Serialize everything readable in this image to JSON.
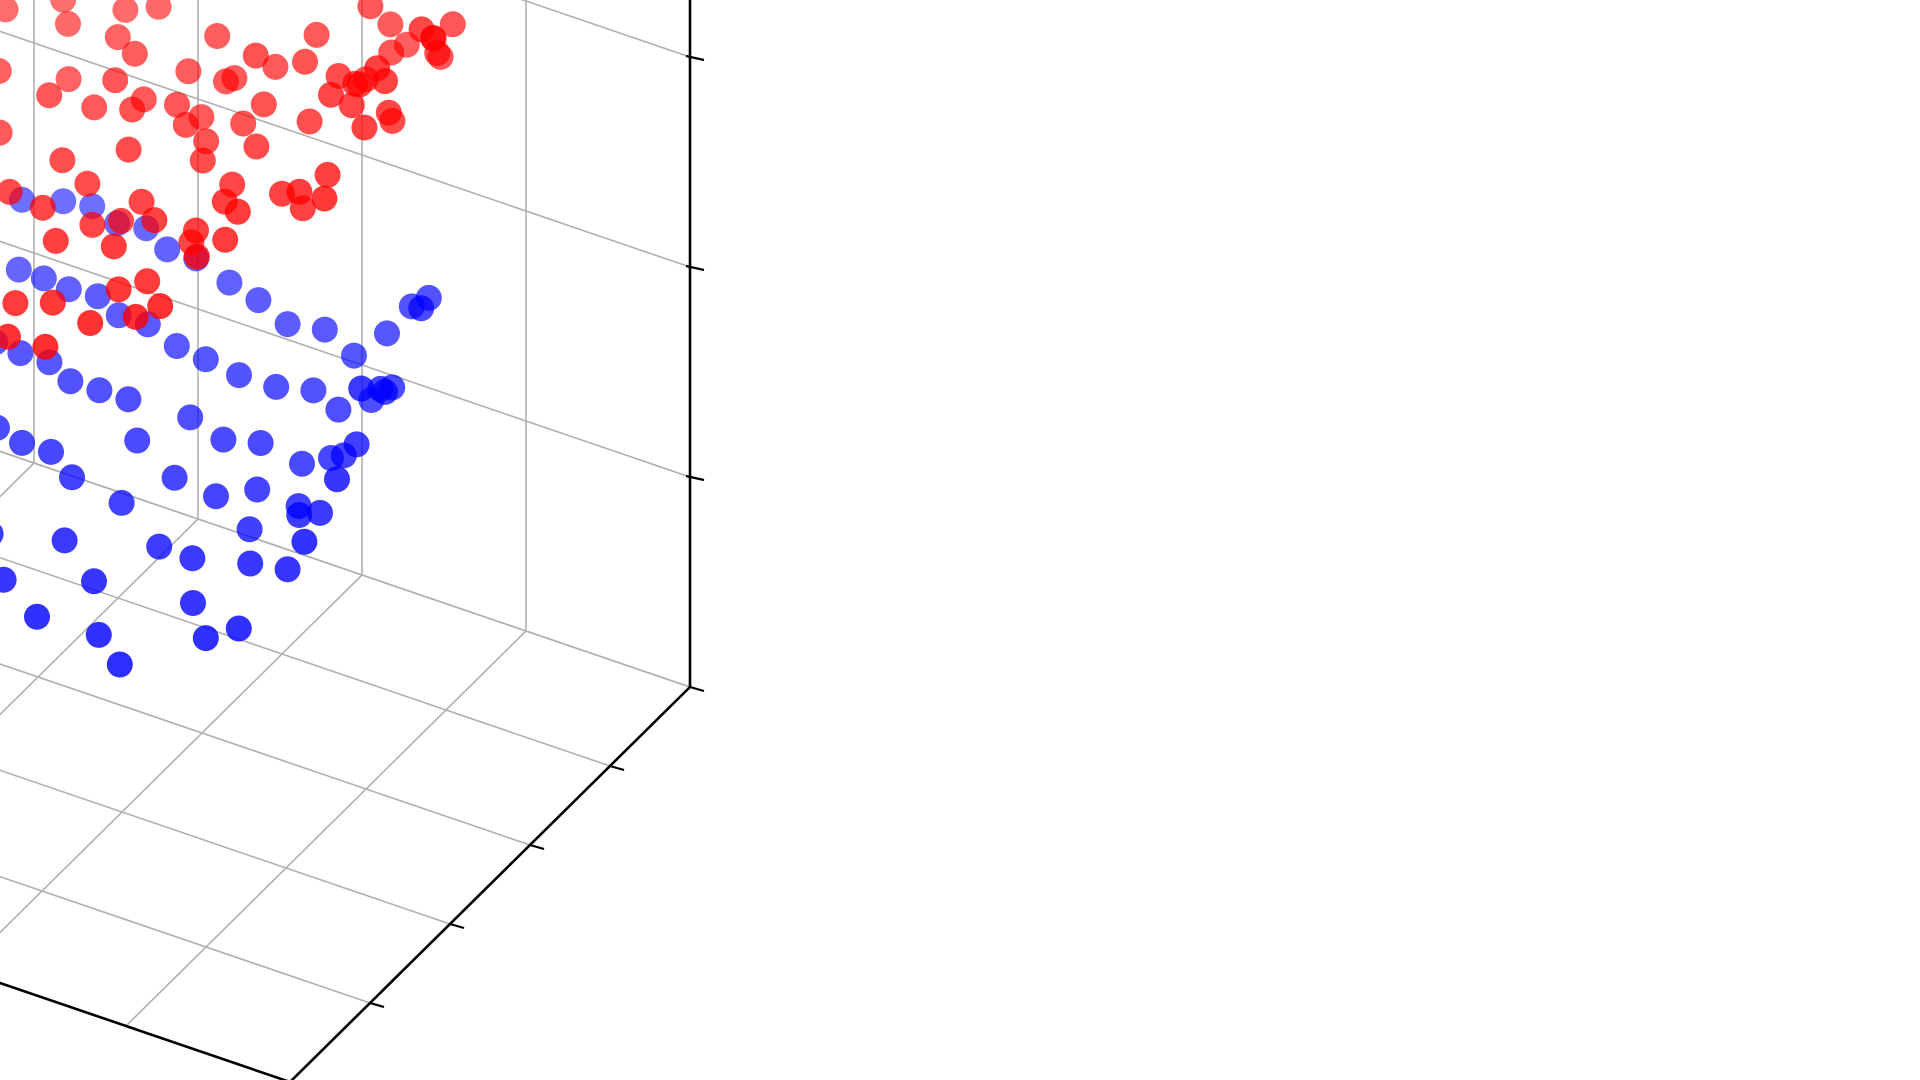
{
  "chart_data": {
    "type": "scatter",
    "projection": "3d",
    "grid": true,
    "title": "",
    "xlabel": "",
    "ylabel": "",
    "zlabel": "",
    "tick_labels_visible": false,
    "series": [
      {
        "color": "#ff0000",
        "points": [
          [
            0.02,
            0.37,
            4.29
          ],
          [
            0.02,
            0.4,
            4.19
          ],
          [
            0.04,
            0.3,
            4.21
          ],
          [
            0.04,
            0.45,
            4.0
          ],
          [
            0.05,
            0.34,
            4.06
          ],
          [
            0.05,
            0.46,
            4.04
          ],
          [
            0.06,
            0.55,
            4.17
          ],
          [
            0.06,
            0.53,
            3.96
          ],
          [
            0.06,
            0.37,
            3.84
          ],
          [
            0.07,
            0.52,
            3.81
          ],
          [
            0.08,
            0.25,
            3.63
          ],
          [
            0.08,
            0.42,
            3.68
          ],
          [
            0.08,
            0.35,
            3.78
          ],
          [
            0.11,
            0.38,
            3.79
          ],
          [
            0.12,
            0.42,
            3.8
          ],
          [
            0.12,
            0.34,
            3.52
          ],
          [
            0.13,
            0.29,
            3.52
          ],
          [
            0.14,
            0.54,
            3.7
          ],
          [
            0.14,
            0.45,
            3.72
          ],
          [
            0.15,
            0.41,
            3.73
          ],
          [
            0.16,
            0.62,
            3.56
          ],
          [
            0.16,
            0.36,
            3.27
          ],
          [
            0.17,
            0.47,
            3.68
          ],
          [
            0.18,
            0.57,
            3.81
          ],
          [
            0.18,
            0.62,
            3.63
          ],
          [
            0.2,
            0.39,
            3.23
          ],
          [
            0.2,
            0.6,
            3.38
          ],
          [
            0.21,
            0.3,
            3.3
          ],
          [
            0.22,
            0.5,
            3.34
          ],
          [
            0.23,
            0.63,
            3.81
          ],
          [
            0.24,
            0.33,
            3.07
          ],
          [
            0.25,
            0.55,
            3.49
          ],
          [
            0.26,
            0.37,
            3.15
          ],
          [
            0.26,
            0.3,
            3.02
          ],
          [
            0.27,
            0.62,
            3.46
          ],
          [
            0.28,
            0.49,
            3.16
          ],
          [
            0.29,
            0.27,
            2.8
          ],
          [
            0.29,
            0.45,
            3.04
          ],
          [
            0.3,
            0.7,
            3.54
          ],
          [
            0.3,
            0.38,
            2.94
          ],
          [
            0.31,
            0.57,
            3.17
          ],
          [
            0.31,
            0.25,
            2.76
          ],
          [
            0.31,
            0.55,
            3.44
          ],
          [
            0.33,
            0.43,
            2.75
          ],
          [
            0.33,
            0.64,
            3.19
          ],
          [
            0.34,
            0.34,
            2.72
          ],
          [
            0.34,
            0.71,
            3.44
          ],
          [
            0.34,
            0.58,
            3.02
          ],
          [
            0.36,
            0.75,
            3.6
          ],
          [
            0.36,
            0.52,
            2.93
          ],
          [
            0.37,
            0.33,
            2.66
          ],
          [
            0.38,
            0.64,
            3.07
          ],
          [
            0.38,
            0.44,
            2.77
          ],
          [
            0.39,
            0.59,
            2.85
          ],
          [
            0.39,
            0.3,
            2.53
          ],
          [
            0.4,
            0.66,
            2.99
          ],
          [
            0.41,
            0.58,
            2.92
          ],
          [
            0.41,
            0.4,
            2.68
          ],
          [
            0.42,
            0.49,
            2.71
          ],
          [
            0.43,
            0.66,
            2.78
          ],
          [
            0.43,
            0.27,
            2.42
          ],
          [
            0.44,
            0.72,
            3.04
          ],
          [
            0.45,
            0.5,
            2.56
          ],
          [
            0.45,
            0.64,
            2.85
          ],
          [
            0.46,
            0.35,
            2.44
          ],
          [
            0.47,
            0.56,
            2.76
          ],
          [
            0.48,
            0.73,
            2.8
          ],
          [
            0.48,
            0.49,
            2.52
          ],
          [
            0.49,
            0.61,
            2.83
          ],
          [
            0.5,
            0.32,
            2.28
          ],
          [
            0.51,
            0.68,
            2.72
          ],
          [
            0.51,
            0.46,
            2.46
          ],
          [
            0.52,
            0.82,
            3.11
          ],
          [
            0.53,
            0.58,
            2.48
          ],
          [
            0.53,
            0.4,
            2.25
          ],
          [
            0.54,
            0.67,
            2.79
          ],
          [
            0.55,
            0.26,
            2.08
          ],
          [
            0.56,
            0.76,
            2.72
          ],
          [
            0.56,
            0.53,
            2.42
          ],
          [
            0.57,
            0.84,
            2.78
          ],
          [
            0.58,
            0.62,
            2.45
          ],
          [
            0.58,
            0.43,
            2.3
          ],
          [
            0.59,
            0.72,
            2.5
          ],
          [
            0.6,
            0.36,
            2.1
          ],
          [
            0.61,
            0.82,
            2.62
          ],
          [
            0.62,
            0.57,
            2.34
          ],
          [
            0.63,
            0.88,
            2.61
          ],
          [
            0.64,
            0.71,
            2.51
          ],
          [
            0.65,
            0.47,
            2.11
          ],
          [
            0.66,
            0.97,
            2.88
          ],
          [
            0.67,
            0.82,
            2.34
          ],
          [
            0.68,
            0.63,
            2.24
          ],
          [
            0.7,
            0.88,
            2.45
          ],
          [
            0.72,
            0.75,
            2.15
          ],
          [
            0.74,
            0.95,
            2.38
          ],
          [
            0.76,
            0.83,
            2.24
          ],
          [
            0.79,
            0.71,
            1.8
          ],
          [
            0.82,
            0.97,
            2.19
          ],
          [
            0.86,
            0.91,
            2.04
          ],
          [
            0.92,
            0.98,
            2.0
          ]
        ]
      },
      {
        "color": "#0000ff",
        "points": [
          [
            0.04,
            0.26,
            2.76
          ],
          [
            0.04,
            0.41,
            2.86
          ],
          [
            0.05,
            0.34,
            2.58
          ],
          [
            0.05,
            0.22,
            2.39
          ],
          [
            0.06,
            0.47,
            2.77
          ],
          [
            0.07,
            0.31,
            2.36
          ],
          [
            0.08,
            0.39,
            2.46
          ],
          [
            0.08,
            0.2,
            2.09
          ],
          [
            0.09,
            0.44,
            2.36
          ],
          [
            0.1,
            0.28,
            2.05
          ],
          [
            0.11,
            0.53,
            2.55
          ],
          [
            0.11,
            0.36,
            2.16
          ],
          [
            0.12,
            0.24,
            1.83
          ],
          [
            0.13,
            0.47,
            2.19
          ],
          [
            0.14,
            0.31,
            1.93
          ],
          [
            0.15,
            0.55,
            2.33
          ],
          [
            0.15,
            0.41,
            2.0
          ],
          [
            0.16,
            0.2,
            1.57
          ],
          [
            0.17,
            0.37,
            1.82
          ],
          [
            0.18,
            0.49,
            2.04
          ],
          [
            0.19,
            0.29,
            1.67
          ],
          [
            0.2,
            0.57,
            2.12
          ],
          [
            0.2,
            0.44,
            1.85
          ],
          [
            0.21,
            0.22,
            1.42
          ],
          [
            0.22,
            0.35,
            1.68
          ],
          [
            0.23,
            0.53,
            1.99
          ],
          [
            0.24,
            0.41,
            1.73
          ],
          [
            0.25,
            0.27,
            1.44
          ],
          [
            0.26,
            0.62,
            2.07
          ],
          [
            0.27,
            0.48,
            1.78
          ],
          [
            0.28,
            0.33,
            1.5
          ],
          [
            0.29,
            0.56,
            1.87
          ],
          [
            0.3,
            0.43,
            1.58
          ],
          [
            0.31,
            0.21,
            1.18
          ],
          [
            0.32,
            0.65,
            1.96
          ],
          [
            0.33,
            0.51,
            1.66
          ],
          [
            0.34,
            0.37,
            1.4
          ],
          [
            0.35,
            0.59,
            1.79
          ],
          [
            0.36,
            0.26,
            1.16
          ],
          [
            0.37,
            0.47,
            1.5
          ],
          [
            0.38,
            0.7,
            1.9
          ],
          [
            0.39,
            0.55,
            1.61
          ],
          [
            0.4,
            0.33,
            1.23
          ],
          [
            0.41,
            0.63,
            1.71
          ],
          [
            0.42,
            0.44,
            1.37
          ],
          [
            0.43,
            0.73,
            1.86
          ],
          [
            0.44,
            0.52,
            1.49
          ],
          [
            0.45,
            0.29,
            1.07
          ],
          [
            0.46,
            0.66,
            1.65
          ],
          [
            0.47,
            0.4,
            1.2
          ],
          [
            0.48,
            0.58,
            1.52
          ],
          [
            0.49,
            0.77,
            1.82
          ],
          [
            0.5,
            0.48,
            1.31
          ],
          [
            0.51,
            0.69,
            1.63
          ],
          [
            0.52,
            0.35,
            1.04
          ],
          [
            0.53,
            0.61,
            1.44
          ],
          [
            0.54,
            0.8,
            1.74
          ],
          [
            0.55,
            0.53,
            1.27
          ],
          [
            0.56,
            0.72,
            1.55
          ],
          [
            0.57,
            0.42,
            1.06
          ],
          [
            0.58,
            0.64,
            1.36
          ],
          [
            0.59,
            0.85,
            1.68
          ],
          [
            0.6,
            0.56,
            1.19
          ],
          [
            0.61,
            0.77,
            1.48
          ],
          [
            0.62,
            0.47,
            0.99
          ],
          [
            0.63,
            0.69,
            1.29
          ],
          [
            0.64,
            0.88,
            1.58
          ],
          [
            0.65,
            0.6,
            1.12
          ],
          [
            0.66,
            0.8,
            1.39
          ],
          [
            0.67,
            0.51,
            0.9
          ],
          [
            0.68,
            0.72,
            1.21
          ],
          [
            0.69,
            0.92,
            1.52
          ],
          [
            0.7,
            0.64,
            1.03
          ],
          [
            0.71,
            0.84,
            1.3
          ],
          [
            0.72,
            0.56,
            0.82
          ],
          [
            0.73,
            0.76,
            1.12
          ],
          [
            0.74,
            0.95,
            1.42
          ],
          [
            0.75,
            0.68,
            0.95
          ],
          [
            0.76,
            0.88,
            1.2
          ],
          [
            0.78,
            0.6,
            0.74
          ],
          [
            0.79,
            0.8,
            1.02
          ],
          [
            0.8,
            0.97,
            1.31
          ],
          [
            0.82,
            0.72,
            0.86
          ],
          [
            0.84,
            0.91,
            1.09
          ],
          [
            0.86,
            0.64,
            0.62
          ],
          [
            0.88,
            0.84,
            0.92
          ],
          [
            0.9,
            0.76,
            0.7
          ],
          [
            0.92,
            0.95,
            0.98
          ],
          [
            0.94,
            0.69,
            0.5
          ],
          [
            0.96,
            0.88,
            0.78
          ]
        ]
      }
    ]
  }
}
